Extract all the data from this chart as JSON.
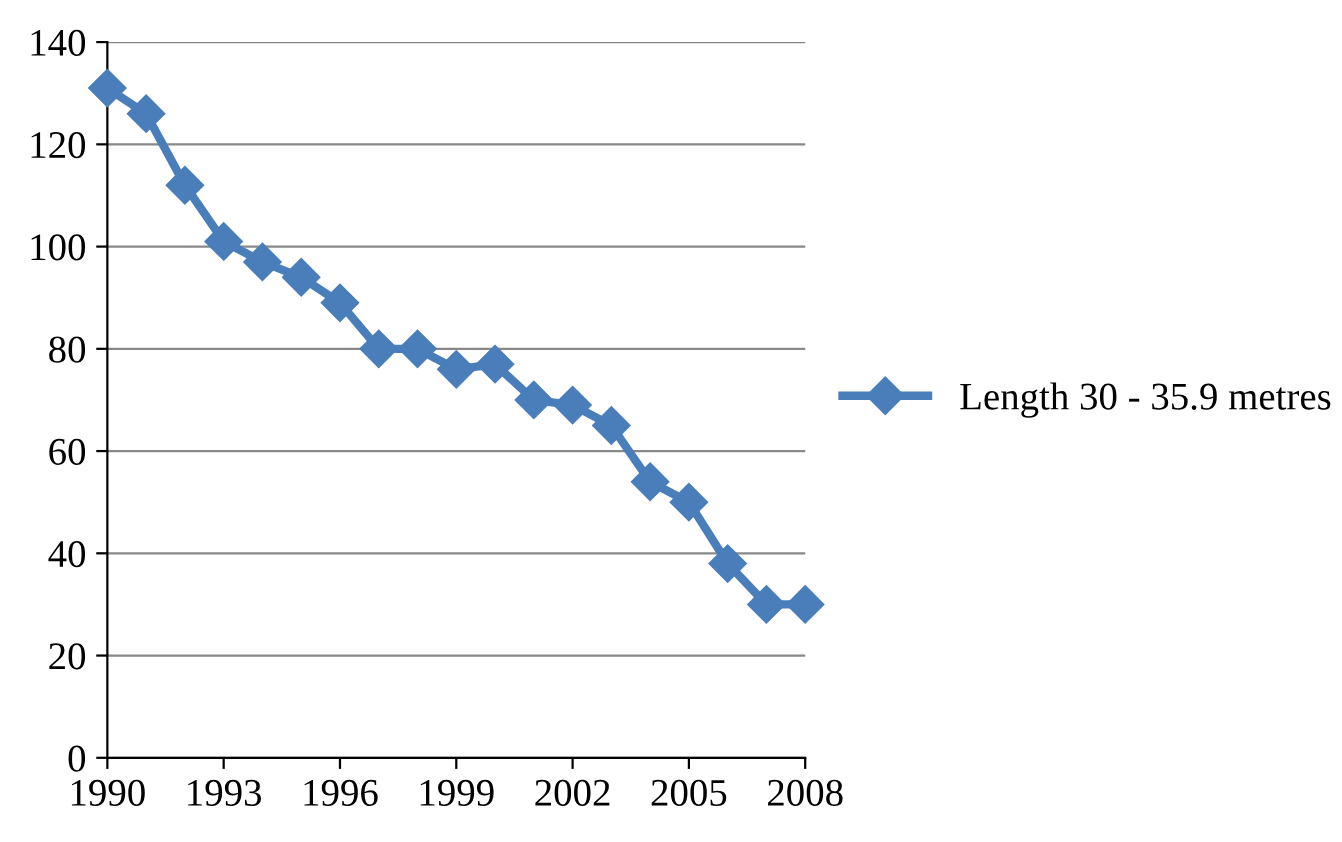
{
  "chart_data": {
    "type": "line",
    "x": [
      1990,
      1991,
      1992,
      1993,
      1994,
      1995,
      1996,
      1997,
      1998,
      1999,
      2000,
      2001,
      2002,
      2003,
      2004,
      2005,
      2006,
      2007,
      2008
    ],
    "series": [
      {
        "name": "Length 30 - 35.9 metres",
        "color": "#4a7ebb",
        "values": [
          131,
          126,
          112,
          101,
          97,
          94,
          89,
          80,
          80,
          76,
          77,
          70,
          69,
          65,
          54,
          50,
          38,
          30,
          30
        ]
      }
    ],
    "xlim": [
      1990,
      2008
    ],
    "xticks": [
      1990,
      1993,
      1996,
      1999,
      2002,
      2005,
      2008
    ],
    "ylim": [
      0,
      140
    ],
    "yticks": [
      0,
      20,
      40,
      60,
      80,
      100,
      120,
      140
    ],
    "grid": "y",
    "legend": "right",
    "marker": "diamond",
    "line_style": "solid"
  }
}
